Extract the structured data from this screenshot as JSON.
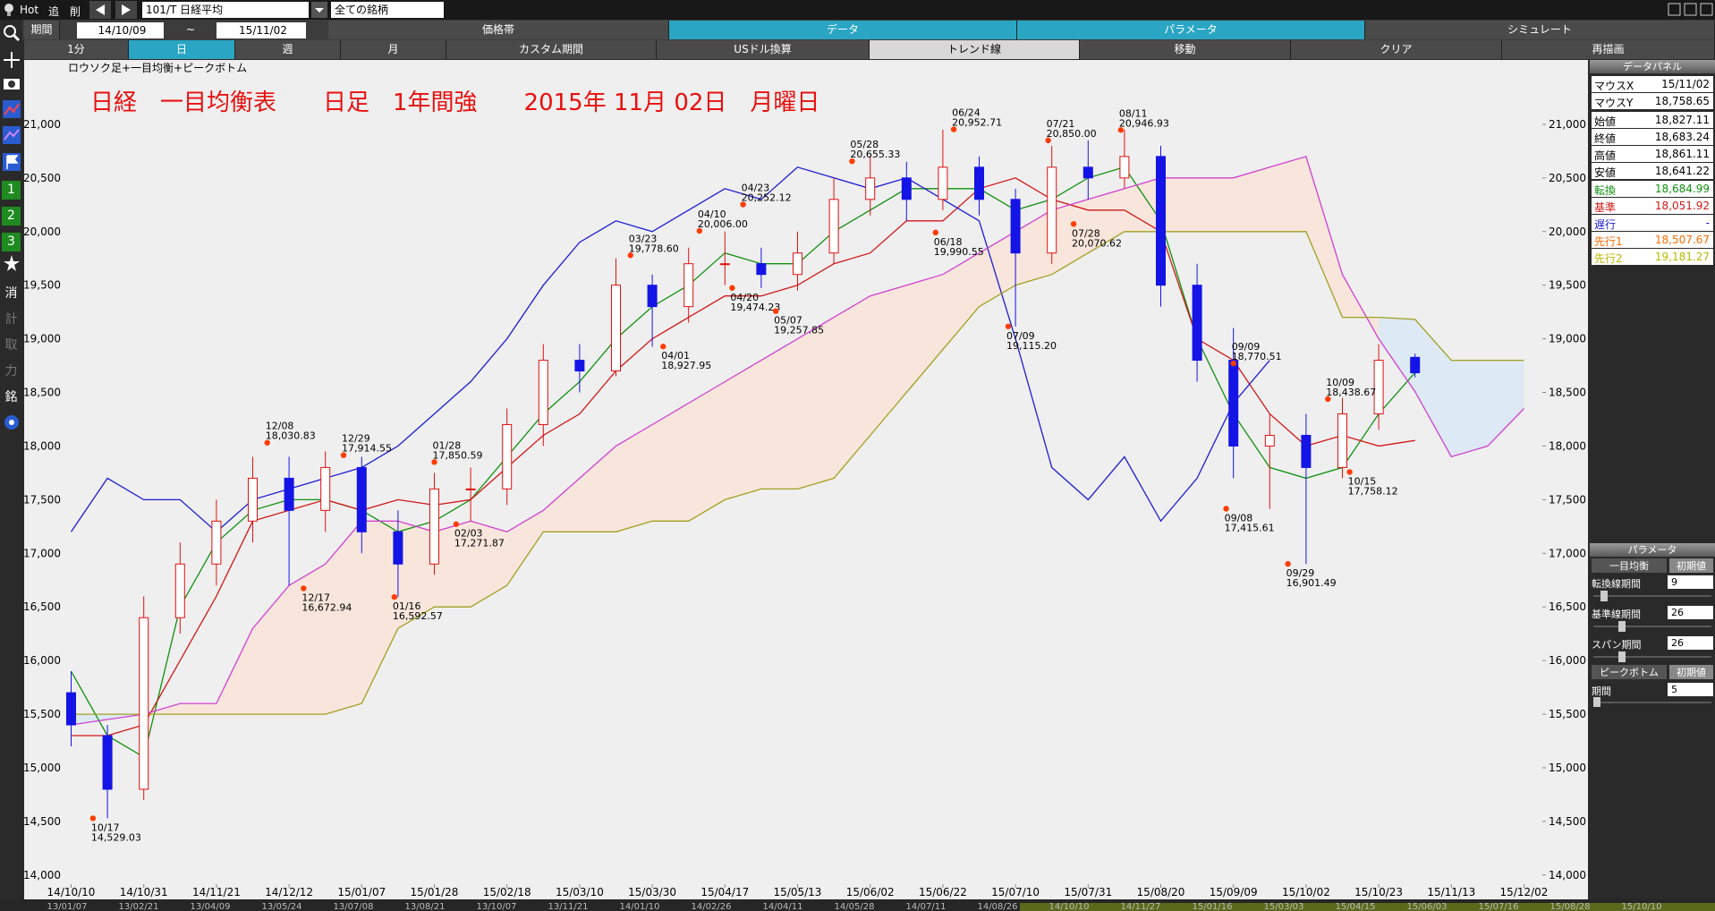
{
  "toolbar": {
    "hot": "Hot",
    "add": "追",
    "del": "削",
    "symbol": "101/T 日経平均",
    "universe": "全ての銘柄"
  },
  "period_bar": {
    "label": "期間",
    "from": "14/10/09",
    "sep": "~",
    "to": "15/11/02",
    "tabs": [
      "価格帯",
      "データ",
      "パラメータ",
      "シミュレート"
    ]
  },
  "range_bar": [
    "1分",
    "日",
    "週",
    "月",
    "カスタム期間",
    "USドル換算",
    "トレンド線",
    "移動",
    "クリア",
    "再描画"
  ],
  "sidebar": [
    "1",
    "2",
    "3",
    "消",
    "計",
    "取",
    "力",
    "銘"
  ],
  "data_panel": {
    "title": "データパネル",
    "rows": [
      [
        "マウスX",
        "15/11/02"
      ],
      [
        "マウスY",
        "18,758.65"
      ],
      [
        "始値",
        "18,827.11"
      ],
      [
        "終値",
        "18,683.24"
      ],
      [
        "高値",
        "18,861.11"
      ],
      [
        "安値",
        "18,641.22"
      ],
      [
        "転換",
        "18,684.99"
      ],
      [
        "基準",
        "18,051.92"
      ],
      [
        "遅行",
        "-"
      ],
      [
        "先行1",
        "18,507.67"
      ],
      [
        "先行2",
        "19,181.27"
      ]
    ]
  },
  "param_panel": {
    "title": "パラメータ",
    "groups": [
      {
        "name": "一目均衡",
        "reset": "初期値",
        "params": [
          [
            "転換線期間",
            "9"
          ],
          [
            "基準線期間",
            "26"
          ],
          [
            "スパン期間",
            "26"
          ]
        ]
      },
      {
        "name": "ピークボトム",
        "reset": "初期値",
        "params": [
          [
            "期間",
            "5"
          ]
        ]
      }
    ]
  },
  "chart_data": {
    "type": "candlestick",
    "subtitle": "ロウソク足+一目均衡+ピークボトム",
    "title": "日経　一目均衡表　　日足　1年間強　　2015年 11月 02日　月曜日",
    "categories": [
      "14/10/10",
      null,
      "14/10/31",
      null,
      "14/11/21",
      null,
      "14/12/12",
      null,
      "15/01/07",
      null,
      "15/01/28",
      null,
      "15/02/18",
      null,
      "15/03/10",
      null,
      "15/03/30",
      null,
      "15/04/17",
      null,
      "15/05/13",
      null,
      "15/06/02",
      null,
      "15/06/22",
      null,
      "15/07/10",
      null,
      "15/07/31",
      null,
      "15/08/20",
      null,
      "15/09/09",
      null,
      "15/10/02",
      null,
      "15/10/23",
      null,
      "15/11/13",
      null,
      "15/12/02"
    ],
    "candles": {
      "open": [
        15700,
        15300,
        14800,
        16400,
        16900,
        17300,
        17700,
        17400,
        17800,
        17200,
        16900,
        17600,
        17600,
        18200,
        18800,
        18700,
        19500,
        19300,
        19700,
        19700,
        19600,
        19800,
        20300,
        20500,
        20300,
        20600,
        20300,
        19800,
        20600,
        20500,
        20700,
        19500,
        18800,
        18000,
        18100,
        17800,
        18300,
        18827.11,
        null,
        null,
        null
      ],
      "high": [
        15900,
        15400,
        16600,
        17100,
        17500,
        17900,
        17900,
        17950,
        17900,
        17400,
        17750,
        17800,
        18350,
        18950,
        18950,
        19750,
        19600,
        19850,
        20000,
        19850,
        20000,
        20500,
        20700,
        20650,
        20950,
        20700,
        20400,
        20800,
        20850,
        20950,
        20800,
        19700,
        19100,
        18300,
        18300,
        18450,
        18950,
        18861.11,
        null,
        null,
        null
      ],
      "low": [
        15200,
        14529,
        14700,
        16250,
        16700,
        17100,
        16700,
        17200,
        17000,
        16592,
        16800,
        17300,
        17450,
        18000,
        18500,
        18650,
        18927,
        19150,
        19500,
        19474,
        19450,
        19700,
        20150,
        20100,
        20200,
        20150,
        19115,
        19700,
        20300,
        20400,
        19300,
        18600,
        17700,
        17415,
        16901,
        17700,
        18150,
        18641.22,
        null,
        null,
        null
      ],
      "close": [
        15400,
        14800,
        16400,
        16900,
        17300,
        17700,
        17400,
        17800,
        17200,
        16900,
        17600,
        17600,
        18200,
        18800,
        18700,
        19500,
        19300,
        19700,
        19700,
        19600,
        19800,
        20300,
        20500,
        20300,
        20600,
        20300,
        19800,
        20600,
        20500,
        20700,
        19500,
        18800,
        18000,
        18100,
        17800,
        18300,
        18800,
        18683.24,
        null,
        null,
        null
      ]
    },
    "up_color": "#e01010",
    "down_color": "#1414e6",
    "series": [
      {
        "name": "転換",
        "color": "#109010",
        "values": [
          15900,
          15300,
          15100,
          16500,
          17100,
          17400,
          17500,
          17500,
          17400,
          17200,
          17300,
          17500,
          17900,
          18300,
          18600,
          19000,
          19300,
          19500,
          19800,
          19700,
          19700,
          20000,
          20200,
          20400,
          20400,
          20400,
          20200,
          20300,
          20500,
          20600,
          20100,
          19000,
          18300,
          17800,
          17700,
          17800,
          18300,
          18684.99,
          null,
          null,
          null
        ]
      },
      {
        "name": "基準",
        "color": "#d01818",
        "values": [
          15300,
          15300,
          15400,
          16000,
          16600,
          17300,
          17400,
          17500,
          17400,
          17500,
          17450,
          17500,
          17800,
          18100,
          18300,
          18700,
          19000,
          19200,
          19400,
          19400,
          19500,
          19700,
          19800,
          20100,
          20100,
          20400,
          20500,
          20300,
          20200,
          20200,
          20000,
          19000,
          18800,
          18300,
          18000,
          18100,
          18000,
          18051.92,
          null,
          null,
          null
        ]
      },
      {
        "name": "遅行",
        "color": "#1c1cd0",
        "values": [
          17200,
          17700,
          17500,
          17500,
          17200,
          17500,
          17600,
          17700,
          17800,
          18000,
          18300,
          18600,
          19000,
          19500,
          19900,
          20100,
          20000,
          20200,
          20400,
          20300,
          20600,
          20500,
          20400,
          20500,
          20300,
          20100,
          19000,
          17800,
          17500,
          17900,
          17300,
          17700,
          18400,
          18800,
          null,
          null,
          null,
          null,
          null,
          null,
          null
        ]
      },
      {
        "name": "先行1",
        "color": "#d040d0",
        "values": [
          15400,
          15450,
          15500,
          15600,
          15600,
          16300,
          16700,
          16900,
          17300,
          17300,
          17200,
          17300,
          17200,
          17400,
          17700,
          18000,
          18200,
          18400,
          18600,
          18800,
          19000,
          19200,
          19400,
          19500,
          19600,
          19800,
          20000,
          20200,
          20300,
          20400,
          20500,
          20500,
          20500,
          20600,
          20700,
          19600,
          19000,
          18507.67,
          17900,
          18000,
          18350
        ]
      },
      {
        "name": "先行2",
        "color": "#a0a020",
        "values": [
          15500,
          15500,
          15500,
          15500,
          15500,
          15500,
          15500,
          15500,
          15600,
          16300,
          16500,
          16500,
          16700,
          17200,
          17200,
          17200,
          17300,
          17300,
          17500,
          17600,
          17600,
          17700,
          18100,
          18500,
          18900,
          19300,
          19500,
          19600,
          19800,
          20000,
          20000,
          20000,
          20000,
          20000,
          20000,
          19200,
          19200,
          19181.27,
          18800,
          18800,
          18800
        ]
      }
    ],
    "cloud_colors": {
      "bullish": "#f8e6dc",
      "bearish": "#dde9f4"
    },
    "annotation_color": "#ff3c00",
    "annotations": [
      {
        "label": "10/17",
        "value": 14529.03,
        "value_label": "14,529.03",
        "x": 0.6,
        "kind": "bottom"
      },
      {
        "label": "12/08",
        "value": 18030.83,
        "value_label": "18,030.83",
        "x": 5.4,
        "kind": "peak"
      },
      {
        "label": "12/17",
        "value": 16672.94,
        "value_label": "16,672.94",
        "x": 6.4,
        "kind": "bottom"
      },
      {
        "label": "12/29",
        "value": 17914.55,
        "value_label": "17,914.55",
        "x": 7.5,
        "kind": "peak"
      },
      {
        "label": "01/16",
        "value": 16592.57,
        "value_label": "16,592.57",
        "x": 8.9,
        "kind": "bottom"
      },
      {
        "label": "01/28",
        "value": 17850.59,
        "value_label": "17,850.59",
        "x": 10.0,
        "kind": "peak"
      },
      {
        "label": "02/03",
        "value": 17271.87,
        "value_label": "17,271.87",
        "x": 10.6,
        "kind": "bottom"
      },
      {
        "label": "03/23",
        "value": 19778.6,
        "value_label": "19,778.60",
        "x": 15.4,
        "kind": "peak"
      },
      {
        "label": "04/01",
        "value": 18927.95,
        "value_label": "18,927.95",
        "x": 16.3,
        "kind": "bottom"
      },
      {
        "label": "04/10",
        "value": 20006.0,
        "value_label": "20,006.00",
        "x": 17.3,
        "kind": "peak"
      },
      {
        "label": "04/20",
        "value": 19474.23,
        "value_label": "19,474.23",
        "x": 18.2,
        "kind": "bottom"
      },
      {
        "label": "04/23",
        "value": 20252.12,
        "value_label": "20,252.12",
        "x": 18.5,
        "kind": "peak"
      },
      {
        "label": "05/07",
        "value": 19257.85,
        "value_label": "19,257.85",
        "x": 19.4,
        "kind": "bottom"
      },
      {
        "label": "05/28",
        "value": 20655.33,
        "value_label": "20,655.33",
        "x": 21.5,
        "kind": "peak"
      },
      {
        "label": "06/18",
        "value": 19990.55,
        "value_label": "19,990.55",
        "x": 23.8,
        "kind": "bottom"
      },
      {
        "label": "06/24",
        "value": 20952.71,
        "value_label": "20,952.71",
        "x": 24.3,
        "kind": "peak"
      },
      {
        "label": "07/09",
        "value": 19115.2,
        "value_label": "19,115.20",
        "x": 25.8,
        "kind": "bottom"
      },
      {
        "label": "07/21",
        "value": 20850.0,
        "value_label": "20,850.00",
        "x": 26.9,
        "kind": "peak"
      },
      {
        "label": "07/28",
        "value": 20070.62,
        "value_label": "20,070.62",
        "x": 27.6,
        "kind": "bottom"
      },
      {
        "label": "08/11",
        "value": 20946.93,
        "value_label": "20,946.93",
        "x": 28.9,
        "kind": "peak"
      },
      {
        "label": "09/08",
        "value": 17415.61,
        "value_label": "17,415.61",
        "x": 31.8,
        "kind": "bottom"
      },
      {
        "label": "09/09",
        "value": 18770.51,
        "value_label": "18,770.51",
        "x": 32.0,
        "kind": "peak"
      },
      {
        "label": "09/29",
        "value": 16901.49,
        "value_label": "16,901.49",
        "x": 33.5,
        "kind": "bottom"
      },
      {
        "label": "10/09",
        "value": 18438.67,
        "value_label": "18,438.67",
        "x": 34.6,
        "kind": "peak"
      },
      {
        "label": "10/15",
        "value": 17758.12,
        "value_label": "17,758.12",
        "x": 35.2,
        "kind": "bottom"
      }
    ],
    "ylim": [
      13890,
      21600
    ],
    "yticks": [
      {
        "value": 14000,
        "label": "14,000"
      },
      {
        "value": 14500,
        "label": "14,500"
      },
      {
        "value": 15000,
        "label": "15,000"
      },
      {
        "value": 15500,
        "label": "15,500"
      },
      {
        "value": 16000,
        "label": "16,000"
      },
      {
        "value": 16500,
        "label": "16,500"
      },
      {
        "value": 17000,
        "label": "17,000"
      },
      {
        "value": 17500,
        "label": "17,500"
      },
      {
        "value": 18000,
        "label": "18,000"
      },
      {
        "value": 18500,
        "label": "18,500"
      },
      {
        "value": 19000,
        "label": "19,000"
      },
      {
        "value": 19500,
        "label": "19,500"
      },
      {
        "value": 20000,
        "label": "20,000"
      },
      {
        "value": 20500,
        "label": "20,500"
      },
      {
        "value": 21000,
        "label": "21,000"
      }
    ],
    "overview_labels": [
      "13/01/07",
      "13/02/21",
      "13/04/09",
      "13/05/24",
      "13/07/08",
      "13/08/21",
      "13/10/07",
      "13/11/21",
      "14/01/10",
      "14/02/26",
      "14/04/11",
      "14/05/28",
      "14/07/11",
      "14/08/26",
      "14/10/10",
      "14/11/27",
      "15/01/16",
      "15/03/03",
      "15/04/15",
      "15/06/03",
      "15/07/16",
      "15/08/28",
      "15/10/10"
    ]
  }
}
